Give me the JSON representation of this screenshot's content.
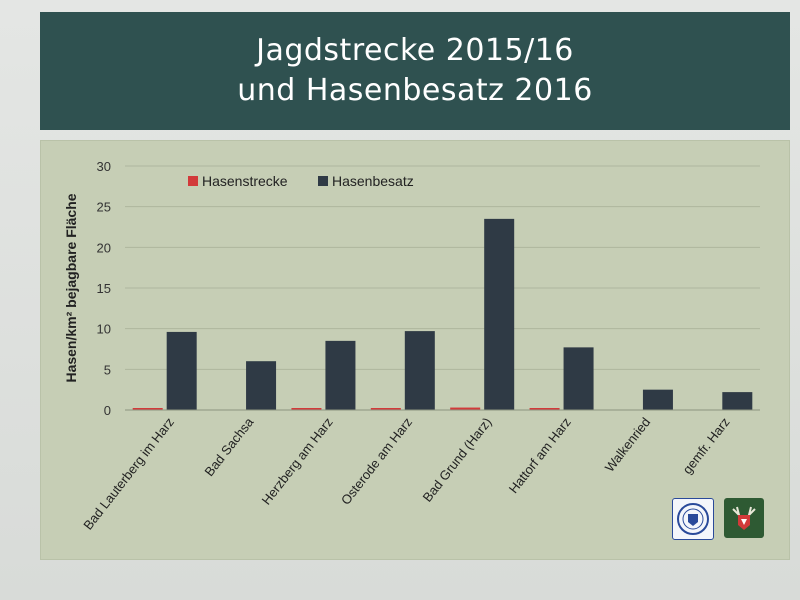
{
  "slide": {
    "title_line1": "Jagdstrecke 2015/16",
    "title_line2": "und Hasenbesatz 2016"
  },
  "chart_data": {
    "type": "bar",
    "title": "Jagdstrecke 2015/16 und Hasenbesatz 2016",
    "ylabel": "Hasen/km² bejagbare Fläche",
    "xlabel": "",
    "ylim": [
      0,
      30
    ],
    "yticks": [
      0,
      5,
      10,
      15,
      20,
      25,
      30
    ],
    "grid": true,
    "legend_position": "top-left",
    "categories": [
      "Bad Lauterberg im Harz",
      "Bad Sachsa",
      "Herzberg am Harz",
      "Osterode am Harz",
      "Bad Grund (Harz)",
      "Hattorf am Harz",
      "Walkenried",
      "gemfr. Harz"
    ],
    "series": [
      {
        "name": "Hasenstrecke",
        "color": "#d23a3a",
        "values": [
          0.1,
          0.0,
          0.1,
          0.2,
          0.3,
          0.1,
          0.0,
          0.0
        ]
      },
      {
        "name": "Hasenbesatz",
        "color": "#2f3a45",
        "values": [
          9.6,
          6.0,
          8.5,
          9.7,
          23.5,
          7.7,
          2.5,
          2.2
        ]
      }
    ]
  }
}
